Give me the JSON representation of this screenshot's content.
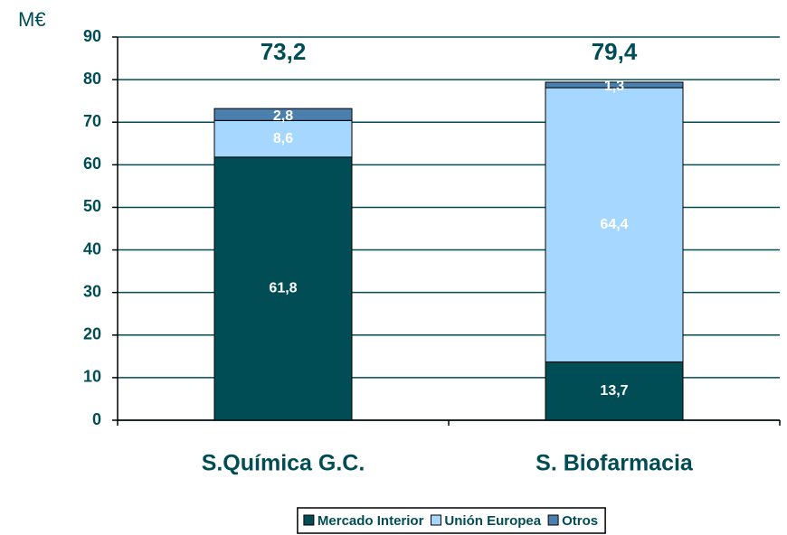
{
  "chart_data": {
    "type": "stacked_bar",
    "y_label": "M€",
    "categories": [
      "S.Química G.C.",
      "S. Biofarmacia"
    ],
    "series": [
      {
        "name": "Mercado Interior",
        "color": "#004d55",
        "values": [
          61.8,
          13.7
        ],
        "value_labels": [
          "61,8",
          "13,7"
        ]
      },
      {
        "name": "Unión Europea",
        "color": "#a6d8ff",
        "values": [
          8.6,
          64.4
        ],
        "value_labels": [
          "8,6",
          "64,4"
        ]
      },
      {
        "name": "Otros",
        "color": "#4a7fae",
        "values": [
          2.8,
          1.3
        ],
        "value_labels": [
          "2,8",
          "1,3"
        ]
      }
    ],
    "totals": [
      73.2,
      79.4
    ],
    "total_labels": [
      "73,2",
      "79,4"
    ],
    "ylim": [
      0,
      90
    ],
    "yticks": [
      0,
      10,
      20,
      30,
      40,
      50,
      60,
      70,
      80,
      90
    ],
    "grid": true
  }
}
